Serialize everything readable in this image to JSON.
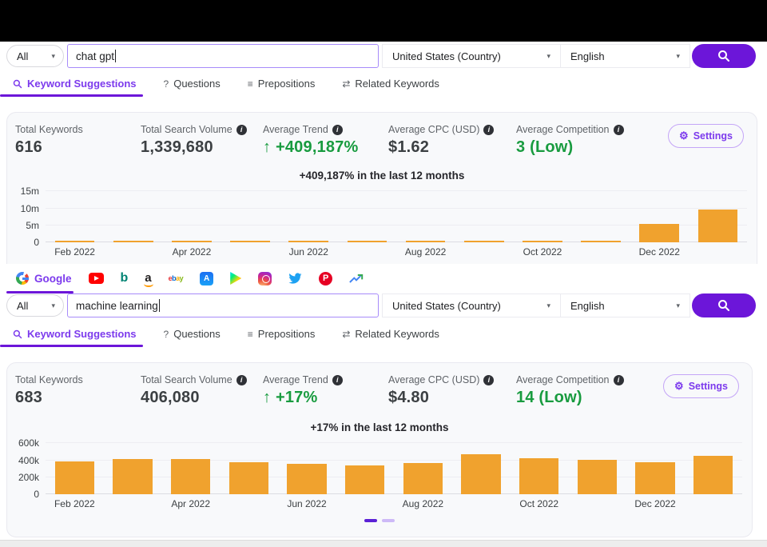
{
  "colors": {
    "accent": "#6C16D9",
    "link_purple": "#7c3aed",
    "bar_orange": "#F0A22E",
    "green": "#189B3F"
  },
  "glyphs": {
    "caret": "▾",
    "info": "i",
    "gear": "⚙",
    "question": "?",
    "prepositions": "≡",
    "related": "⇄",
    "pinterest": "P",
    "appstore": "A",
    "bing": "b",
    "amazon": "a"
  },
  "sources": {
    "items": [
      {
        "label": "Google"
      },
      {
        "label": "YouTube"
      },
      {
        "label": "Bing"
      },
      {
        "label": "Amazon"
      },
      {
        "label": "eBay"
      },
      {
        "label": "App Store"
      },
      {
        "label": "Play Store"
      },
      {
        "label": "Instagram"
      },
      {
        "label": "Twitter"
      },
      {
        "label": "Pinterest"
      },
      {
        "label": "Google Trends"
      }
    ],
    "ebay_letters": {
      "e": "e",
      "b": "b",
      "a": "a",
      "y": "y"
    }
  },
  "panels": [
    {
      "search": {
        "scope": "All",
        "query": "chat gpt",
        "country": "United States (Country)",
        "language": "English"
      },
      "tabs": [
        {
          "label": "Keyword Suggestions",
          "active": true
        },
        {
          "label": "Questions",
          "active": false
        },
        {
          "label": "Prepositions",
          "active": false
        },
        {
          "label": "Related Keywords",
          "active": false
        }
      ],
      "stats": [
        {
          "label": "Total Keywords",
          "value": "616"
        },
        {
          "label": "Total Search Volume",
          "value": "1,339,680"
        },
        {
          "label": "Average Trend",
          "arrow": "↑",
          "value": "+409,187%"
        },
        {
          "label": "Average CPC (USD)",
          "value": "$1.62"
        },
        {
          "label": "Average Competition",
          "value": "3 (Low)"
        }
      ],
      "settings_label": "Settings",
      "chart": {
        "type": "bar",
        "title": "+409,187% in the last 12 months",
        "bar_color": "#F0A22E",
        "ymax": 16000000,
        "yticks": [
          {
            "label": "15m",
            "value": 15000000
          },
          {
            "label": "10m",
            "value": 10000000
          },
          {
            "label": "5m",
            "value": 5000000
          },
          {
            "label": "0",
            "value": 0
          }
        ],
        "categories": [
          "Feb 2022",
          "",
          "Apr 2022",
          "",
          "Jun 2022",
          "",
          "Aug 2022",
          "",
          "Oct 2022",
          "",
          "Dec 2022",
          ""
        ],
        "values": [
          60000,
          60000,
          60000,
          60000,
          60000,
          60000,
          60000,
          60000,
          60000,
          60000,
          5300000,
          9700000
        ]
      }
    },
    {
      "search": {
        "scope": "All",
        "query": "machine learning",
        "country": "United States (Country)",
        "language": "English"
      },
      "tabs": [
        {
          "label": "Keyword Suggestions",
          "active": true
        },
        {
          "label": "Questions",
          "active": false
        },
        {
          "label": "Prepositions",
          "active": false
        },
        {
          "label": "Related Keywords",
          "active": false
        }
      ],
      "stats": [
        {
          "label": "Total Keywords",
          "value": "683"
        },
        {
          "label": "Total Search Volume",
          "value": "406,080"
        },
        {
          "label": "Average Trend",
          "arrow": "↑",
          "value": "+17%"
        },
        {
          "label": "Average CPC (USD)",
          "value": "$4.80"
        },
        {
          "label": "Average Competition",
          "value": "14 (Low)"
        }
      ],
      "settings_label": "Settings",
      "chart": {
        "type": "bar",
        "title": "+17% in the last 12 months",
        "bar_color": "#F0A22E",
        "ymax": 640000,
        "yticks": [
          {
            "label": "600k",
            "value": 600000
          },
          {
            "label": "400k",
            "value": 400000
          },
          {
            "label": "200k",
            "value": 200000
          },
          {
            "label": "0",
            "value": 0
          }
        ],
        "categories": [
          "Feb 2022",
          "",
          "Apr 2022",
          "",
          "Jun 2022",
          "",
          "Aug 2022",
          "",
          "Oct 2022",
          "",
          "Dec 2022",
          ""
        ],
        "values": [
          383000,
          417000,
          413000,
          376000,
          362000,
          338000,
          371000,
          470000,
          421000,
          401000,
          381000,
          456000
        ]
      },
      "pager": {
        "total": 2,
        "active": 1
      }
    }
  ]
}
